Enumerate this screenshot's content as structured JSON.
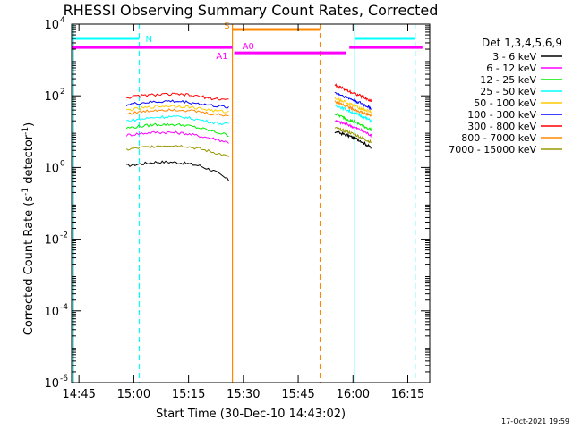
{
  "chart_data": {
    "type": "line",
    "title": "RHESSI Observing Summary Count Rates, Corrected",
    "xlabel": "Start Time (30-Dec-10 14:43:02)",
    "ylabel_main": "Corrected Count Rate (s",
    "ylabel_sup1": "-1",
    "ylabel_mid": " detector",
    "ylabel_sup2": "-1",
    "ylabel_end": ")",
    "x_unit": "minutes of day",
    "xlim": [
      883,
      981
    ],
    "ylim_log10": [
      -6,
      4
    ],
    "yscale": "log",
    "x_ticks": [
      {
        "value": 885,
        "label": "14:45"
      },
      {
        "value": 900,
        "label": "15:00"
      },
      {
        "value": 915,
        "label": "15:15"
      },
      {
        "value": 930,
        "label": "15:30"
      },
      {
        "value": 945,
        "label": "15:45"
      },
      {
        "value": 960,
        "label": "16:00"
      },
      {
        "value": 975,
        "label": "16:15"
      }
    ],
    "y_ticks": [
      {
        "exp": -6,
        "base": "10",
        "sup": "-6"
      },
      {
        "exp": -4,
        "base": "10",
        "sup": "-4"
      },
      {
        "exp": -2,
        "base": "10",
        "sup": "-2"
      },
      {
        "exp": 0,
        "base": "10",
        "sup": "0"
      },
      {
        "exp": 2,
        "base": "10",
        "sup": "2"
      },
      {
        "exp": 4,
        "base": "10",
        "sup": "4"
      }
    ],
    "legend_title": "Det 1,3,4,5,6,9",
    "legend_placement": "right",
    "series": [
      {
        "name": "3 - 6 keV",
        "color": "#000000",
        "seg1": [
          0.05,
          0.1,
          0.15,
          0.15,
          0.12,
          0.05,
          -0.1,
          -0.35
        ],
        "seg2": [
          1.0,
          0.9,
          0.75,
          0.55
        ]
      },
      {
        "name": "6 - 12 keV",
        "color": "#ff00ff",
        "seg1": [
          0.9,
          0.95,
          0.98,
          0.98,
          0.95,
          0.88,
          0.8,
          0.7
        ],
        "seg2": [
          1.3,
          1.2,
          1.05,
          0.9
        ]
      },
      {
        "name": "12 - 25 keV",
        "color": "#00ee00",
        "seg1": [
          1.1,
          1.15,
          1.2,
          1.2,
          1.18,
          1.1,
          1.0,
          0.9
        ],
        "seg2": [
          1.5,
          1.35,
          1.2,
          1.05
        ]
      },
      {
        "name": "25 - 50 keV",
        "color": "#00ffff",
        "seg1": [
          1.3,
          1.35,
          1.4,
          1.42,
          1.4,
          1.33,
          1.25,
          1.2
        ],
        "seg2": [
          1.75,
          1.6,
          1.45,
          1.3
        ]
      },
      {
        "name": "50 - 100 keV",
        "color": "#ffcc00",
        "seg1": [
          1.6,
          1.65,
          1.7,
          1.72,
          1.7,
          1.65,
          1.58,
          1.55
        ],
        "seg2": [
          1.95,
          1.8,
          1.65,
          1.55
        ]
      },
      {
        "name": "100 - 300 keV",
        "color": "#0000ff",
        "seg1": [
          1.75,
          1.8,
          1.83,
          1.85,
          1.83,
          1.78,
          1.72,
          1.68
        ],
        "seg2": [
          2.1,
          1.95,
          1.8,
          1.65
        ]
      },
      {
        "name": "300 - 800 keV",
        "color": "#ff0000",
        "seg1": [
          1.95,
          2.0,
          2.03,
          2.04,
          2.03,
          1.98,
          1.92,
          1.9
        ],
        "seg2": [
          2.3,
          2.15,
          2.0,
          1.85
        ]
      },
      {
        "name": "800 - 7000 keV",
        "color": "#ff8800",
        "seg1": [
          1.5,
          1.55,
          1.6,
          1.62,
          1.6,
          1.55,
          1.48,
          1.45
        ],
        "seg2": [
          1.85,
          1.7,
          1.55,
          1.45
        ]
      },
      {
        "name": "7000 - 15000 keV",
        "color": "#999900",
        "seg1": [
          0.5,
          0.55,
          0.6,
          0.62,
          0.6,
          0.52,
          0.42,
          0.3
        ],
        "seg2": [
          1.1,
          1.0,
          0.85,
          0.7
        ]
      }
    ],
    "seg1_x": [
      898,
      902,
      906,
      910,
      914,
      918,
      922,
      926
    ],
    "seg2_x": [
      955,
      958.5,
      962,
      965
    ],
    "attenuator_bars": [
      {
        "label": "N",
        "color": "#00ffff",
        "level": 3.6,
        "ranges": [
          [
            883,
            901.5
          ],
          [
            960.5,
            977
          ]
        ]
      },
      {
        "label": "S",
        "color": "#ff8800",
        "level": 3.85,
        "ranges": [
          [
            927,
            951
          ]
        ]
      },
      {
        "label": "A0",
        "color": "#ff00ff",
        "level": 3.2,
        "ranges": [
          [
            927.5,
            958
          ]
        ]
      },
      {
        "label": "A1",
        "color": "#ff00ff",
        "level": 3.35,
        "ranges": [
          [
            883,
            927
          ],
          [
            959,
            979
          ]
        ]
      }
    ],
    "vertical_lines": [
      {
        "x": 883.5,
        "color": "#00ffff",
        "style": "solid"
      },
      {
        "x": 901.5,
        "color": "#00ffff",
        "style": "dashed"
      },
      {
        "x": 960.5,
        "color": "#00ffff",
        "style": "solid"
      },
      {
        "x": 977,
        "color": "#00ffff",
        "style": "dashed"
      },
      {
        "x": 927,
        "color": "#ff8800",
        "style": "solid"
      },
      {
        "x": 951,
        "color": "#ff8800",
        "style": "dashed"
      }
    ]
  },
  "footer": {
    "timestamp": "17-Oct-2021 19:59"
  }
}
